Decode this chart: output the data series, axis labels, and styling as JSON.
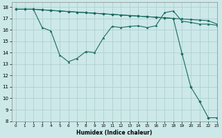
{
  "xlabel": "Humidex (Indice chaleur)",
  "bg_color": "#cce8e8",
  "grid_color": "#aacccc",
  "line_color": "#1a6b60",
  "xlim": [
    -0.5,
    23
  ],
  "ylim": [
    8,
    18.4
  ],
  "xticks": [
    0,
    1,
    2,
    3,
    4,
    5,
    6,
    7,
    8,
    9,
    10,
    11,
    12,
    13,
    14,
    15,
    16,
    17,
    18,
    19,
    20,
    21,
    22,
    23
  ],
  "yticks": [
    8,
    9,
    10,
    11,
    12,
    13,
    14,
    15,
    16,
    17,
    18
  ],
  "line1_x": [
    0,
    1,
    2,
    3,
    4,
    5,
    6,
    7,
    8,
    9,
    10,
    11,
    12,
    13,
    14,
    15,
    16,
    17,
    18,
    19,
    20,
    21,
    22,
    23
  ],
  "line1_y": [
    17.8,
    17.8,
    17.8,
    17.75,
    17.7,
    17.65,
    17.6,
    17.55,
    17.5,
    17.45,
    17.4,
    17.35,
    17.3,
    17.25,
    17.2,
    17.15,
    17.1,
    17.05,
    17.0,
    16.95,
    16.9,
    16.85,
    16.8,
    16.5
  ],
  "line2_x": [
    0,
    1,
    2,
    3,
    4,
    5,
    6,
    7,
    8,
    9,
    10,
    11,
    12,
    13,
    14,
    15,
    16,
    17,
    18,
    19,
    20,
    21,
    22,
    23
  ],
  "line2_y": [
    17.8,
    17.8,
    17.8,
    16.2,
    15.9,
    13.8,
    13.2,
    13.5,
    14.1,
    14.0,
    15.3,
    16.3,
    16.2,
    16.3,
    16.35,
    16.2,
    16.35,
    17.5,
    17.65,
    16.75,
    16.65,
    16.5,
    16.5,
    16.4
  ],
  "line3_x": [
    0,
    1,
    2,
    3,
    4,
    5,
    6,
    7,
    8,
    9,
    10,
    11,
    12,
    13,
    14,
    15,
    16,
    17,
    18,
    19,
    20,
    21,
    22,
    23
  ],
  "line3_y": [
    17.8,
    17.8,
    17.8,
    17.75,
    17.7,
    17.65,
    17.6,
    17.55,
    17.5,
    17.45,
    17.4,
    17.35,
    17.3,
    17.25,
    17.2,
    17.15,
    17.1,
    17.05,
    17.0,
    13.9,
    11.0,
    9.75,
    8.3,
    8.3
  ]
}
